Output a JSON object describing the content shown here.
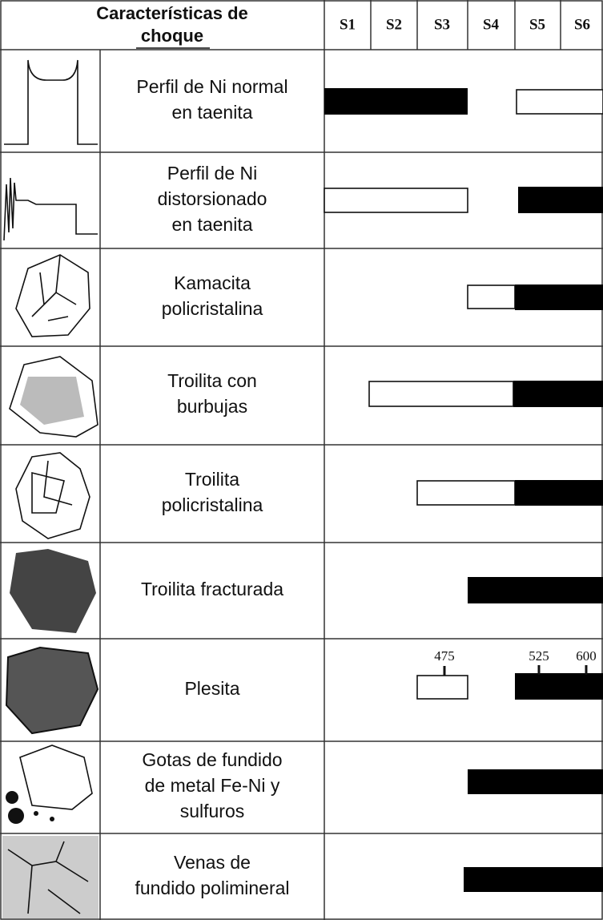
{
  "header": {
    "title_lines": [
      "Características de",
      "choque"
    ],
    "stages": [
      "S1",
      "S2",
      "S3",
      "S4",
      "S5",
      "S6"
    ]
  },
  "rows": [
    {
      "label_lines": [
        "Perfil de Ni normal",
        "en taenita"
      ]
    },
    {
      "label_lines": [
        "Perfil de Ni",
        "distorsionado",
        "en taenita"
      ]
    },
    {
      "label_lines": [
        "Kamacita",
        "policristalina"
      ]
    },
    {
      "label_lines": [
        "Troilita con",
        "burbujas"
      ]
    },
    {
      "label_lines": [
        "Troilita",
        "policristalina"
      ]
    },
    {
      "label_lines": [
        "Troilita fracturada"
      ]
    },
    {
      "label_lines": [
        "Plesita"
      ],
      "marks": [
        475,
        525,
        600
      ]
    },
    {
      "label_lines": [
        "Gotas de fundido",
        "de metal Fe-Ni y",
        "sulfuros"
      ]
    },
    {
      "label_lines": [
        "Venas de",
        "fundido polimineral"
      ]
    }
  ]
}
